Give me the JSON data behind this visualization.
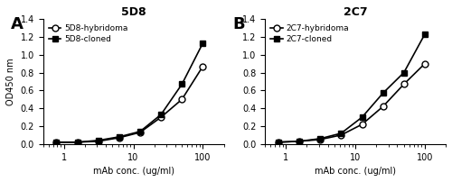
{
  "panel_A": {
    "title": "5D8",
    "label_letter": "A",
    "hybridoma_label": "5D8-hybridoma",
    "cloned_label": "5D8-cloned",
    "x": [
      0.78125,
      1.5625,
      3.125,
      6.25,
      12.5,
      25,
      50,
      100
    ],
    "hybridoma_y": [
      0.02,
      0.02,
      0.03,
      0.07,
      0.13,
      0.3,
      0.5,
      0.87
    ],
    "cloned_y": [
      0.02,
      0.02,
      0.04,
      0.08,
      0.14,
      0.33,
      0.67,
      1.13
    ]
  },
  "panel_B": {
    "title": "2C7",
    "label_letter": "B",
    "hybridoma_label": "2C7-hybridoma",
    "cloned_label": "2C7-cloned",
    "x": [
      0.78125,
      1.5625,
      3.125,
      6.25,
      12.5,
      25,
      50,
      100
    ],
    "hybridoma_y": [
      0.02,
      0.03,
      0.05,
      0.1,
      0.22,
      0.42,
      0.67,
      0.9
    ],
    "cloned_y": [
      0.02,
      0.03,
      0.06,
      0.12,
      0.3,
      0.57,
      0.8,
      1.23
    ]
  },
  "ylim": [
    0,
    1.4
  ],
  "yticks": [
    0.0,
    0.2,
    0.4,
    0.6,
    0.8,
    1.0,
    1.2,
    1.4
  ],
  "xlim": [
    0.5,
    200
  ],
  "xlabel": "mAb conc. (ug/ml)",
  "ylabel": "OD450 nm",
  "line_color": "#000000",
  "marker_open": "o",
  "marker_filled": "s",
  "markersize": 5,
  "linewidth": 1.2,
  "fontsize_title": 9,
  "fontsize_label": 7,
  "fontsize_tick": 7,
  "fontsize_legend": 6.5,
  "fontsize_letter": 13
}
